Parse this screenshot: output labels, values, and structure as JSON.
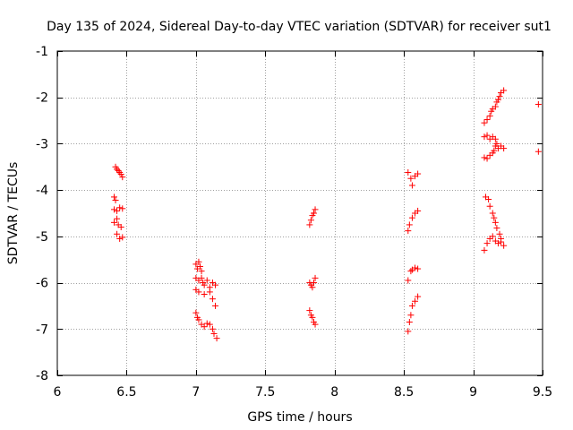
{
  "chart_data": {
    "type": "scatter",
    "title": "Day 135 of 2024, Sidereal Day-to-day VTEC variation (SDTVAR) for receiver sut1",
    "xlabel": "GPS time / hours",
    "ylabel": "SDTVAR / TECUs",
    "xlim": [
      6,
      9.5
    ],
    "ylim": [
      -8,
      -1
    ],
    "grid": true,
    "x_ticks": [
      6,
      6.5,
      7,
      7.5,
      8,
      8.5,
      9,
      9.5
    ],
    "x_tick_labels": [
      "6",
      "6.5",
      "7",
      "7.5",
      "8",
      "8.5",
      "9",
      "9.5"
    ],
    "y_ticks": [
      -8,
      -7,
      -6,
      -5,
      -4,
      -3,
      -2,
      -1
    ],
    "y_tick_labels": [
      "-8",
      "-7",
      "-6",
      "-5",
      "-4",
      "-3",
      "-2",
      "-1"
    ],
    "marker": "+",
    "marker_color": "#ff0000",
    "series": [
      {
        "name": "sut1",
        "points": [
          [
            6.42,
            -3.5
          ],
          [
            6.43,
            -3.55
          ],
          [
            6.44,
            -3.58
          ],
          [
            6.45,
            -3.62
          ],
          [
            6.46,
            -3.66
          ],
          [
            6.47,
            -3.72
          ],
          [
            6.41,
            -4.15
          ],
          [
            6.42,
            -4.22
          ],
          [
            6.41,
            -4.42
          ],
          [
            6.43,
            -4.45
          ],
          [
            6.45,
            -4.38
          ],
          [
            6.47,
            -4.4
          ],
          [
            6.41,
            -4.7
          ],
          [
            6.43,
            -4.62
          ],
          [
            6.44,
            -4.75
          ],
          [
            6.46,
            -4.8
          ],
          [
            6.43,
            -4.95
          ],
          [
            6.45,
            -5.05
          ],
          [
            6.47,
            -5.02
          ],
          [
            7.0,
            -5.6
          ],
          [
            7.01,
            -5.7
          ],
          [
            7.02,
            -5.55
          ],
          [
            7.03,
            -5.65
          ],
          [
            7.04,
            -5.75
          ],
          [
            7.0,
            -5.9
          ],
          [
            7.02,
            -5.95
          ],
          [
            7.04,
            -5.9
          ],
          [
            7.05,
            -6.0
          ],
          [
            7.06,
            -6.05
          ],
          [
            7.08,
            -5.95
          ],
          [
            7.1,
            -6.1
          ],
          [
            7.12,
            -6.0
          ],
          [
            7.14,
            -6.05
          ],
          [
            7.0,
            -6.15
          ],
          [
            7.02,
            -6.2
          ],
          [
            7.06,
            -6.25
          ],
          [
            7.1,
            -6.2
          ],
          [
            7.12,
            -6.35
          ],
          [
            7.14,
            -6.5
          ],
          [
            7.0,
            -6.65
          ],
          [
            7.01,
            -6.75
          ],
          [
            7.02,
            -6.8
          ],
          [
            7.04,
            -6.9
          ],
          [
            7.06,
            -6.95
          ],
          [
            7.08,
            -6.88
          ],
          [
            7.1,
            -6.9
          ],
          [
            7.12,
            -7.0
          ],
          [
            7.13,
            -7.1
          ],
          [
            7.15,
            -7.2
          ],
          [
            7.82,
            -4.75
          ],
          [
            7.83,
            -4.65
          ],
          [
            7.84,
            -4.55
          ],
          [
            7.85,
            -4.5
          ],
          [
            7.86,
            -4.42
          ],
          [
            7.82,
            -6.0
          ],
          [
            7.83,
            -6.05
          ],
          [
            7.84,
            -6.1
          ],
          [
            7.85,
            -6.0
          ],
          [
            7.86,
            -5.9
          ],
          [
            7.82,
            -6.6
          ],
          [
            7.83,
            -6.7
          ],
          [
            7.84,
            -6.75
          ],
          [
            7.85,
            -6.85
          ],
          [
            7.86,
            -6.9
          ],
          [
            8.53,
            -3.62
          ],
          [
            8.55,
            -3.75
          ],
          [
            8.56,
            -3.9
          ],
          [
            8.58,
            -3.7
          ],
          [
            8.6,
            -3.65
          ],
          [
            8.53,
            -4.88
          ],
          [
            8.54,
            -4.75
          ],
          [
            8.56,
            -4.6
          ],
          [
            8.58,
            -4.5
          ],
          [
            8.6,
            -4.45
          ],
          [
            8.53,
            -5.95
          ],
          [
            8.55,
            -5.75
          ],
          [
            8.56,
            -5.72
          ],
          [
            8.58,
            -5.68
          ],
          [
            8.6,
            -5.7
          ],
          [
            8.53,
            -7.05
          ],
          [
            8.54,
            -6.85
          ],
          [
            8.55,
            -6.7
          ],
          [
            8.56,
            -6.5
          ],
          [
            8.58,
            -6.4
          ],
          [
            8.6,
            -6.3
          ],
          [
            9.08,
            -2.55
          ],
          [
            9.1,
            -2.48
          ],
          [
            9.12,
            -2.4
          ],
          [
            9.13,
            -2.3
          ],
          [
            9.14,
            -2.25
          ],
          [
            9.16,
            -2.2
          ],
          [
            9.17,
            -2.1
          ],
          [
            9.18,
            -2.05
          ],
          [
            9.19,
            -1.98
          ],
          [
            9.2,
            -1.9
          ],
          [
            9.22,
            -1.85
          ],
          [
            9.08,
            -2.85
          ],
          [
            9.1,
            -2.82
          ],
          [
            9.12,
            -2.9
          ],
          [
            9.14,
            -2.85
          ],
          [
            9.16,
            -2.9
          ],
          [
            9.17,
            -3.0
          ],
          [
            9.18,
            -3.1
          ],
          [
            9.2,
            -3.05
          ],
          [
            9.22,
            -3.1
          ],
          [
            9.08,
            -3.3
          ],
          [
            9.1,
            -3.32
          ],
          [
            9.12,
            -3.25
          ],
          [
            9.14,
            -3.2
          ],
          [
            9.15,
            -3.15
          ],
          [
            9.16,
            -3.05
          ],
          [
            9.09,
            -4.15
          ],
          [
            9.11,
            -4.2
          ],
          [
            9.12,
            -4.35
          ],
          [
            9.14,
            -4.5
          ],
          [
            9.15,
            -4.6
          ],
          [
            9.16,
            -4.7
          ],
          [
            9.17,
            -4.82
          ],
          [
            9.19,
            -4.95
          ],
          [
            9.2,
            -5.05
          ],
          [
            9.22,
            -5.2
          ],
          [
            9.08,
            -5.3
          ],
          [
            9.1,
            -5.15
          ],
          [
            9.12,
            -5.05
          ],
          [
            9.14,
            -5.0
          ],
          [
            9.16,
            -5.1
          ],
          [
            9.18,
            -5.15
          ],
          [
            9.2,
            -5.12
          ],
          [
            9.47,
            -2.15
          ],
          [
            9.47,
            -3.17
          ]
        ]
      }
    ]
  }
}
